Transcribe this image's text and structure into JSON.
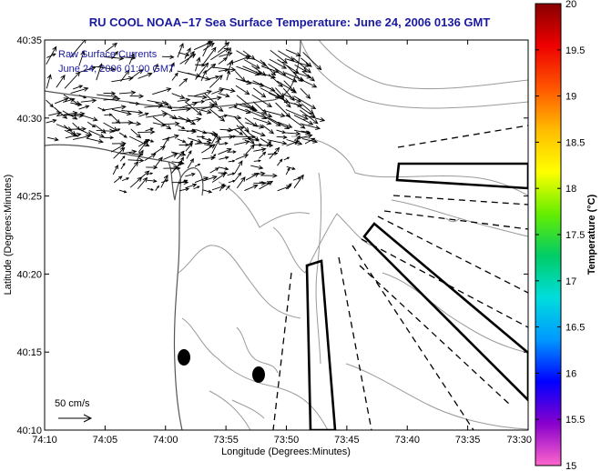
{
  "title": "RU COOL   NOAA−17  Sea Surface Temperature:  June 24, 2006 0136 GMT",
  "legend": {
    "line1": "Raw Surface Currents",
    "line2": "June 24, 2006 01:00 GMT"
  },
  "scale_arrow_label": "50 cm/s",
  "x_axis": {
    "label": "Longitude (Degrees:Minutes)",
    "ticks": [
      "74:10",
      "74:05",
      "74:00",
      "73:55",
      "73:50",
      "73:45",
      "73:40",
      "73:35",
      "73:30"
    ]
  },
  "y_axis": {
    "label": "Latitude (Degrees:Minutes)",
    "ticks": [
      "40:35",
      "40:30",
      "40:25",
      "40:20",
      "40:15",
      "40:10"
    ]
  },
  "colorbar": {
    "label": "Temperature (°C)",
    "ticks": [
      "20",
      "19.5",
      "19",
      "18.5",
      "18",
      "17.5",
      "17",
      "16.5",
      "16",
      "15.5",
      "15"
    ],
    "colors": [
      "#ff66cc",
      "#8800cc",
      "#0000ff",
      "#0099ff",
      "#00dddd",
      "#00cc66",
      "#66ee00",
      "#ffff00",
      "#ffbb00",
      "#ff5500",
      "#ee0000",
      "#880000"
    ]
  },
  "style": {
    "title_color": "#1a1aa0",
    "coast_color": "#555555",
    "contour_color": "#999999"
  }
}
